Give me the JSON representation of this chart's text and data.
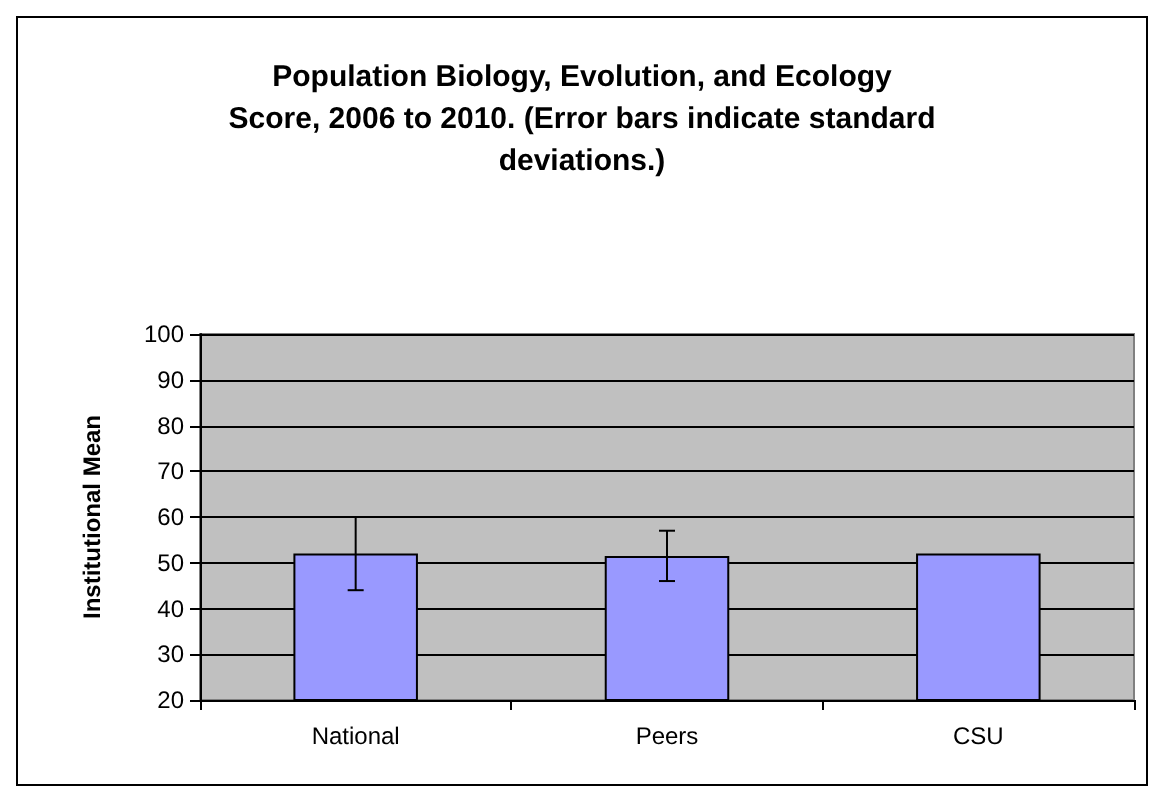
{
  "chart_data": {
    "type": "bar",
    "title": "Population Biology, Evolution, and Ecology\nScore, 2006 to 2010. (Error bars indicate standard\ndeviations.)",
    "ylabel": "Institutional Mean",
    "categories": [
      "National",
      "Peers",
      "CSU"
    ],
    "values": [
      52,
      51.5,
      52
    ],
    "color": "#9999ff",
    "errors": [
      [
        44,
        60
      ],
      [
        46,
        57
      ],
      null
    ],
    "ylim": [
      20,
      100
    ],
    "yticks": [
      20,
      30,
      40,
      50,
      60,
      70,
      80,
      90,
      100
    ],
    "grid": "y"
  }
}
